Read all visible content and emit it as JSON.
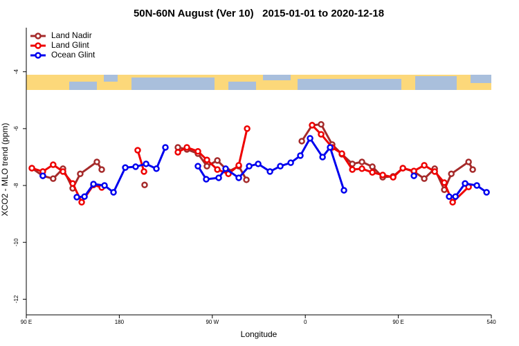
{
  "chart_data": {
    "type": "line",
    "title": "50N-60N August (Ver 10)   2015-01-01 to 2020-12-18",
    "x_label": "Longitude",
    "y_label": "XCO2 - MLO trend (ppm)",
    "xlim": [
      90,
      540
    ],
    "xticks": [
      {
        "value": 90,
        "label": "90 E"
      },
      180,
      {
        "value": 270,
        "label": "90 W"
      },
      {
        "value": 360,
        "label": "0"
      },
      {
        "value": 450,
        "label": "90 E"
      },
      540
    ],
    "ylim": [
      -12.55,
      -2.45
    ],
    "yticks": [
      -4,
      -6,
      -8,
      -10,
      -12
    ],
    "legend": "top-left",
    "series": [
      {
        "name": "Land Nadir",
        "color": "#a52a2a",
        "x": [
          95.4,
          106,
          116,
          125.5,
          134.9,
          142.2,
          158.3,
          163,
          204.5,
          236.7,
          245.4,
          256.1,
          264.8,
          274.9,
          285.6,
          295.6,
          303,
          356.6,
          366.6,
          375.3,
          386,
          395.4,
          405.5,
          414.8,
          424.9,
          434.9,
          445,
          454.4,
          465.1,
          475.1,
          485.2,
          494.5,
          501.3,
          518,
          522
        ],
        "values": [
          -7.39,
          -7.66,
          -7.76,
          -7.41,
          -8.1,
          -7.59,
          -7.17,
          -7.44,
          -7.98,
          -6.66,
          -6.73,
          -6.88,
          -7.32,
          -7.12,
          -7.51,
          -7.32,
          -7.8,
          -6.44,
          -5.88,
          -5.85,
          -6.56,
          -6.9,
          -7.24,
          -7.17,
          -7.34,
          -7.71,
          -7.68,
          -7.39,
          -7.51,
          -7.76,
          -7.41,
          -8.15,
          -7.59,
          -7.17,
          -7.44
        ],
        "breaks": null
      },
      {
        "name": "Land Glint",
        "color": "#ee0000",
        "x": [
          95.4,
          106,
          116,
          125.5,
          134.9,
          143.6,
          155,
          163,
          197.8,
          203.9,
          236.7,
          245.4,
          256.1,
          264.8,
          274.9,
          285.6,
          295.6,
          303.7,
          366.6,
          375.3,
          386,
          395.4,
          405.5,
          414.8,
          424.9,
          434.9,
          445,
          454.4,
          465.1,
          475.1,
          485.2,
          494.5,
          502.6,
          518
        ],
        "values": [
          -7.39,
          -7.51,
          -7.27,
          -7.51,
          -7.93,
          -8.59,
          -7.98,
          -8.07,
          -6.76,
          -7.51,
          -6.83,
          -6.66,
          -6.8,
          -7.1,
          -7.44,
          -7.59,
          -7.29,
          -6.0,
          -5.88,
          -6.2,
          -6.66,
          -6.88,
          -7.44,
          -7.41,
          -7.54,
          -7.63,
          -7.71,
          -7.39,
          -7.49,
          -7.29,
          -7.51,
          -7.9,
          -8.59,
          -8.05
        ]
      },
      {
        "name": "Ocean Glint",
        "color": "#0000ee",
        "x": [
          106,
          138.9,
          146.3,
          155,
          165.7,
          174.4,
          185.8,
          195.8,
          205.9,
          215.9,
          224.6,
          256.1,
          264.1,
          276.2,
          282.9,
          295.6,
          305.7,
          314.4,
          325.8,
          335.8,
          345.9,
          355.2,
          364.6,
          376.7,
          384,
          397.4,
          465.1,
          499.2,
          505.3,
          514.6,
          526,
          535.4
        ],
        "values": [
          -7.66,
          -8.41,
          -8.39,
          -7.95,
          -8.0,
          -8.24,
          -7.37,
          -7.34,
          -7.24,
          -7.41,
          -6.66,
          -7.32,
          -7.78,
          -7.73,
          -7.41,
          -7.73,
          -7.32,
          -7.24,
          -7.51,
          -7.32,
          -7.2,
          -6.95,
          -6.34,
          -7.0,
          -6.66,
          -8.17,
          -7.66,
          -8.39,
          -8.39,
          -7.93,
          -8.0,
          -8.24
        ]
      }
    ]
  }
}
